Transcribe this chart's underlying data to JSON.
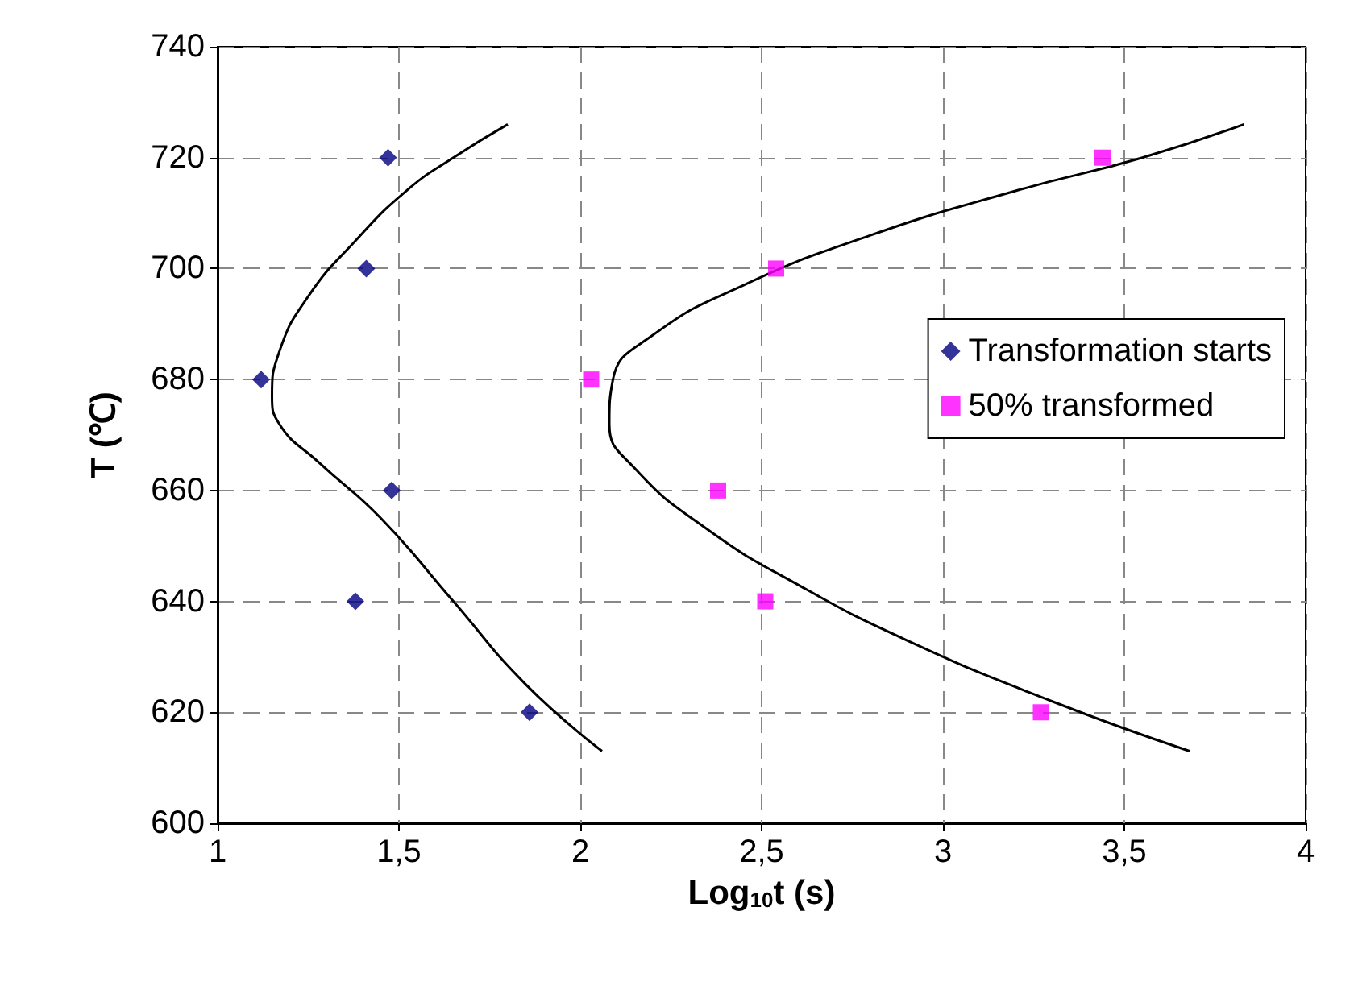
{
  "chart_data": {
    "type": "scatter",
    "xlabel": "Log$_{10}$t (s)",
    "ylabel": "T (℃)",
    "xlim": [
      1,
      4
    ],
    "xticks": [
      1,
      {
        "value": 1.5,
        "label": "1,5"
      },
      2,
      {
        "value": 2.5,
        "label": "2,5"
      },
      3,
      {
        "value": 3.5,
        "label": "3,5"
      },
      4
    ],
    "ylim": [
      600,
      740
    ],
    "yticks": [
      600,
      620,
      640,
      660,
      680,
      700,
      720,
      740
    ],
    "grid": true,
    "legend": "right",
    "series": [
      {
        "name": "Transformation starts",
        "marker": "diamond",
        "color": "#000080",
        "x": [
          1.47,
          1.41,
          1.12,
          1.48,
          1.38,
          1.86
        ],
        "values": [
          720,
          700,
          680,
          660,
          640,
          620
        ]
      },
      {
        "name": "50% transformed",
        "marker": "square",
        "color": "#ff00ff",
        "x": [
          3.44,
          2.54,
          2.03,
          2.38,
          2.51,
          3.27
        ],
        "values": [
          720,
          700,
          680,
          660,
          640,
          620
        ]
      },
      {
        "type": "line",
        "color": "#000000",
        "marker": "none",
        "x": [
          2.06,
          1.85,
          1.65,
          1.45,
          1.28,
          1.17,
          1.15,
          1.17,
          1.25,
          1.38,
          1.52,
          1.65,
          1.8
        ],
        "values": [
          613,
          625,
          640,
          655,
          665,
          672,
          677,
          685,
          695,
          705,
          714,
          720,
          726
        ]
      },
      {
        "type": "line",
        "color": "#000000",
        "marker": "none",
        "x": [
          3.68,
          3.3,
          2.9,
          2.6,
          2.35,
          2.15,
          2.08,
          2.09,
          2.2,
          2.45,
          2.8,
          3.2,
          3.55,
          3.83
        ],
        "values": [
          613,
          622,
          633,
          643,
          653,
          664,
          672,
          680,
          688,
          697,
          706,
          714,
          720,
          726
        ]
      }
    ]
  }
}
